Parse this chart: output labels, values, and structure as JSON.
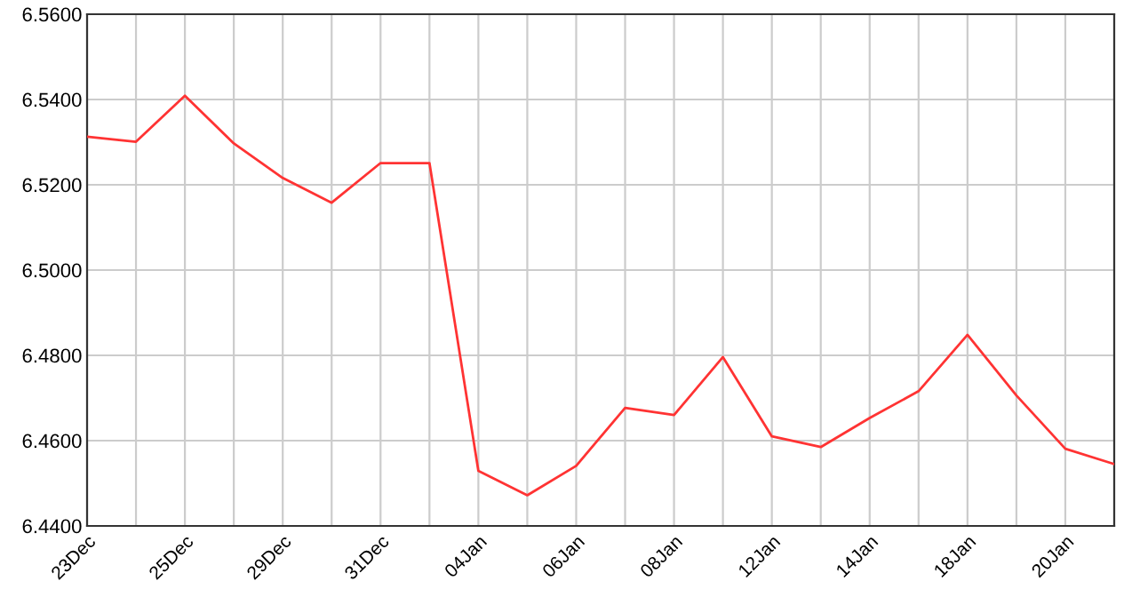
{
  "chart_data": {
    "type": "line",
    "categories": [
      "23Dec",
      null,
      "25Dec",
      null,
      "29Dec",
      null,
      "31Dec",
      null,
      "04Jan",
      null,
      "06Jan",
      null,
      "08Jan",
      null,
      "12Jan",
      null,
      "14Jan",
      null,
      "18Jan",
      null,
      "20Jan",
      null
    ],
    "series": [
      {
        "color": "#ff3333",
        "values": [
          6.5313,
          6.5301,
          6.5409,
          6.5297,
          6.5216,
          6.5158,
          6.5251,
          6.5251,
          6.4529,
          6.4472,
          6.4541,
          6.4677,
          6.466,
          6.4796,
          6.461,
          6.4585,
          6.4653,
          6.4716,
          6.4848,
          6.4706,
          6.4581,
          6.4545
        ]
      }
    ],
    "ylim": [
      6.44,
      6.56
    ],
    "yticks": [
      {
        "value": 6.44,
        "label": "6.4400"
      },
      {
        "value": 6.46,
        "label": "6.4600"
      },
      {
        "value": 6.48,
        "label": "6.4800"
      },
      {
        "value": 6.5,
        "label": "6.5000"
      },
      {
        "value": 6.52,
        "label": "6.5200"
      },
      {
        "value": 6.54,
        "label": "6.5400"
      },
      {
        "value": 6.56,
        "label": "6.5600"
      }
    ],
    "grid": true,
    "legend": false
  }
}
